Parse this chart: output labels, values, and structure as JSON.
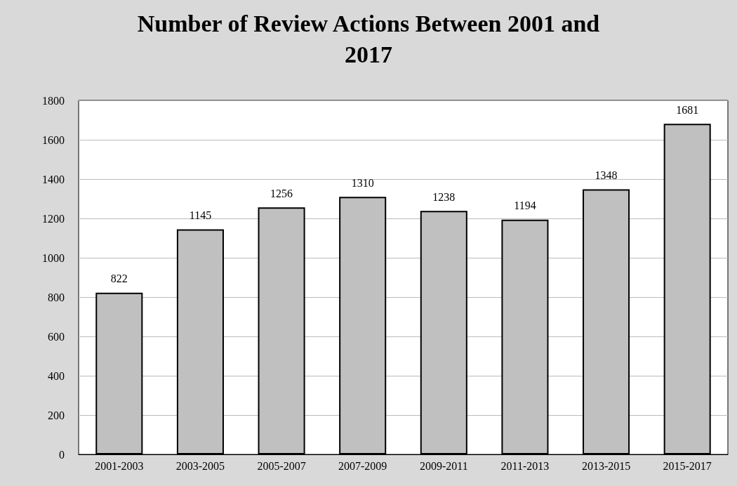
{
  "chart_data": {
    "type": "bar",
    "title": "Number of Review Actions Between 2001 and 2017",
    "categories": [
      "2001-2003",
      "2003-2005",
      "2005-2007",
      "2007-2009",
      "2009-2011",
      "2011-2013",
      "2013-2015",
      "2015-2017"
    ],
    "values": [
      822,
      1145,
      1256,
      1310,
      1238,
      1194,
      1348,
      1681
    ],
    "color": "#c0c0c0",
    "ylim": [
      0,
      1800
    ],
    "yticks": [
      0,
      200,
      400,
      600,
      800,
      1000,
      1200,
      1400,
      1600,
      1800
    ],
    "grid": "y",
    "data_labels": true
  }
}
